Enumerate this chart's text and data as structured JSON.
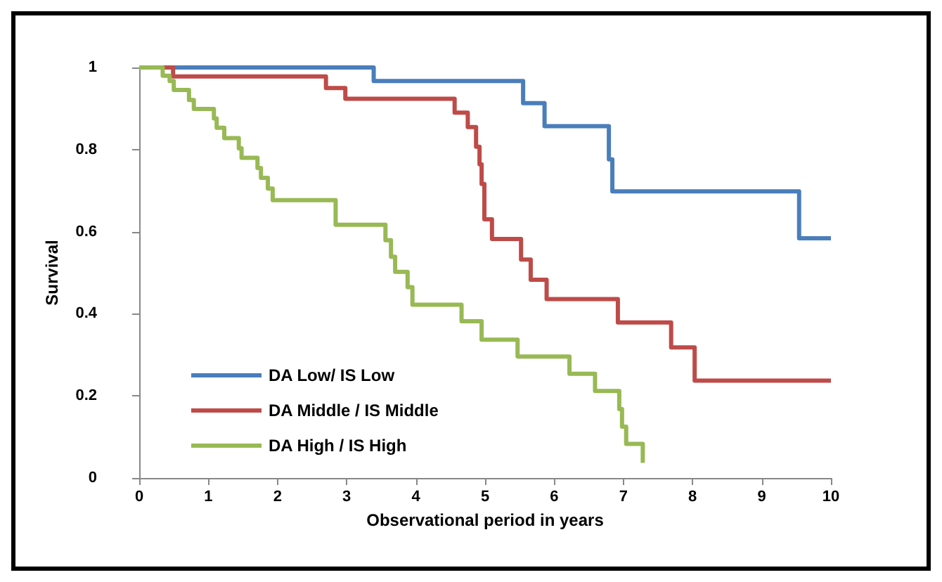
{
  "chart_data": {
    "type": "step",
    "xlabel": "Observational period in years",
    "ylabel": "Survival",
    "xlim": [
      0,
      10
    ],
    "xticks": [
      0,
      1,
      2,
      3,
      4,
      5,
      6,
      7,
      8,
      9,
      10
    ],
    "ylim": [
      0,
      1
    ],
    "yticks": [
      0,
      0.2,
      0.4,
      0.6,
      0.8,
      1
    ],
    "grid": false,
    "legend": "bottom left",
    "marker": "none",
    "line_style": "solid",
    "series": [
      {
        "name": "DA Low/ IS Low",
        "color": "#4a7ebb",
        "x": [
          0,
          3.39,
          5.55,
          5.86,
          6.79,
          6.84,
          9.54,
          10
        ],
        "values": [
          1,
          0.967,
          0.913,
          0.857,
          0.776,
          0.698,
          0.584,
          0.584
        ]
      },
      {
        "name": "DA Middle / IS Middle",
        "color": "#be4b48",
        "x": [
          0,
          0.49,
          2.7,
          2.98,
          4.56,
          4.75,
          4.87,
          4.92,
          4.95,
          4.99,
          5.1,
          5.52,
          5.66,
          5.89,
          6.92,
          7.69,
          8.03,
          10
        ],
        "values": [
          1,
          0.978,
          0.95,
          0.924,
          0.89,
          0.855,
          0.807,
          0.764,
          0.716,
          0.63,
          0.582,
          0.532,
          0.483,
          0.436,
          0.379,
          0.318,
          0.237,
          0.237
        ]
      },
      {
        "name": "DA High / IS High",
        "color": "#98b954",
        "x": [
          0,
          0.34,
          0.44,
          0.5,
          0.72,
          0.79,
          1.08,
          1.12,
          1.23,
          1.44,
          1.48,
          1.71,
          1.76,
          1.86,
          1.93,
          2.84,
          3.56,
          3.64,
          3.7,
          3.88,
          3.95,
          4.66,
          4.95,
          5.47,
          6.22,
          6.59,
          6.94,
          6.98,
          7.04,
          7.28,
          7.28
        ],
        "values": [
          1,
          0.98,
          0.967,
          0.945,
          0.921,
          0.899,
          0.876,
          0.853,
          0.828,
          0.803,
          0.78,
          0.755,
          0.731,
          0.705,
          0.677,
          0.617,
          0.579,
          0.539,
          0.502,
          0.465,
          0.422,
          0.382,
          0.337,
          0.296,
          0.254,
          0.212,
          0.168,
          0.125,
          0.083,
          0.083,
          0.037
        ]
      }
    ]
  }
}
